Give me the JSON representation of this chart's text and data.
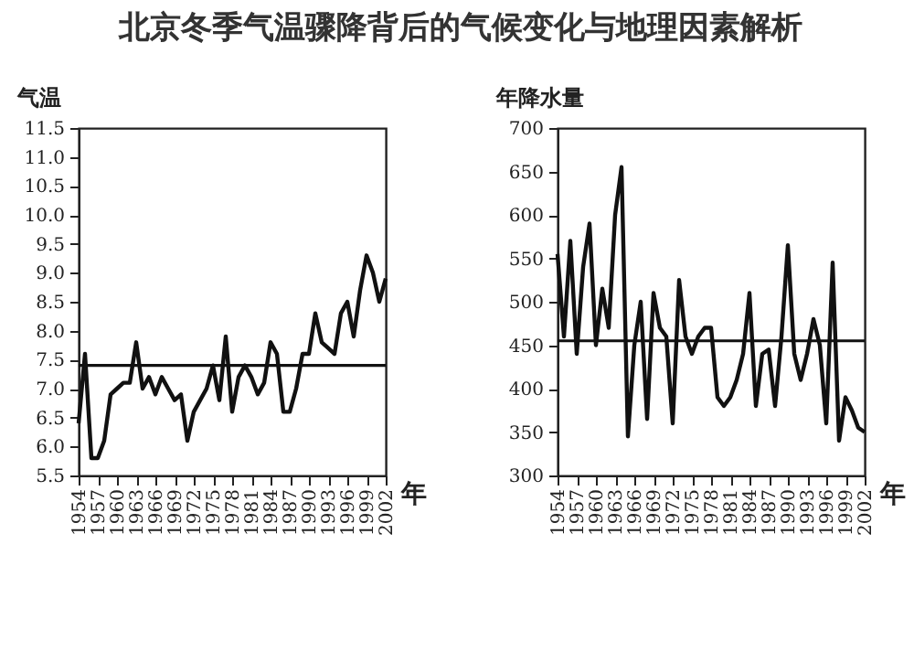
{
  "chart_data": [
    {
      "type": "line",
      "title": "北京冬季气温骤降背后的气候变化与地理因素解析",
      "ylabel": "气温",
      "xlabel": "年",
      "x": [
        1954,
        1955,
        1956,
        1957,
        1958,
        1959,
        1960,
        1961,
        1962,
        1963,
        1964,
        1965,
        1966,
        1967,
        1968,
        1969,
        1970,
        1971,
        1972,
        1973,
        1974,
        1975,
        1976,
        1977,
        1978,
        1979,
        1980,
        1981,
        1982,
        1983,
        1984,
        1985,
        1986,
        1987,
        1988,
        1989,
        1990,
        1991,
        1992,
        1993,
        1994,
        1995,
        1996,
        1997,
        1998,
        1999,
        2000,
        2001,
        2002
      ],
      "series": [
        {
          "color": "#111111",
          "values": [
            6.4,
            7.6,
            5.8,
            5.8,
            6.1,
            6.9,
            7.0,
            7.1,
            7.1,
            7.8,
            7.0,
            7.2,
            6.9,
            7.2,
            7.0,
            6.8,
            6.9,
            6.1,
            6.6,
            6.8,
            7.0,
            7.4,
            6.8,
            7.9,
            6.6,
            7.2,
            7.4,
            7.2,
            6.9,
            7.1,
            7.8,
            7.6,
            6.6,
            6.6,
            7.0,
            7.6,
            7.6,
            8.3,
            7.8,
            7.7,
            7.6,
            8.3,
            8.5,
            7.9,
            8.7,
            9.3,
            9.0,
            8.5,
            8.9
          ]
        }
      ],
      "xlim": [
        1954,
        2002
      ],
      "xticks": [
        1954,
        1957,
        1960,
        1963,
        1966,
        1969,
        1972,
        1975,
        1978,
        1981,
        1984,
        1987,
        1990,
        1993,
        1996,
        1999,
        2002
      ],
      "ylim": [
        5.5,
        11.5
      ],
      "yticks": [
        5.5,
        {
          "value": 6,
          "label": "6.0"
        },
        6.5,
        {
          "value": 7,
          "label": "7.0"
        },
        7.5,
        {
          "value": 8,
          "label": "8.0"
        },
        8.5,
        {
          "value": 9,
          "label": "9.0"
        },
        9.5,
        {
          "value": 10,
          "label": "10.0"
        },
        10.5,
        {
          "value": 11,
          "label": "11.0"
        },
        11.5
      ],
      "ref_lines": [
        {
          "axis": "y",
          "value": 7.4,
          "color": "#111111"
        }
      ],
      "grid": false,
      "marker": "none",
      "line_style": "solid"
    },
    {
      "type": "line",
      "ylabel": "年降水量",
      "xlabel": "年",
      "x": [
        1954,
        1955,
        1956,
        1957,
        1958,
        1959,
        1960,
        1961,
        1962,
        1963,
        1964,
        1965,
        1966,
        1967,
        1968,
        1969,
        1970,
        1971,
        1972,
        1973,
        1974,
        1975,
        1976,
        1977,
        1978,
        1979,
        1980,
        1981,
        1982,
        1983,
        1984,
        1985,
        1986,
        1987,
        1988,
        1989,
        1990,
        1991,
        1992,
        1993,
        1994,
        1995,
        1996,
        1997,
        1998,
        1999,
        2000,
        2001,
        2002
      ],
      "series": [
        {
          "color": "#111111",
          "values": [
            555,
            460,
            570,
            440,
            540,
            590,
            450,
            515,
            470,
            600,
            655,
            345,
            450,
            500,
            365,
            510,
            470,
            460,
            360,
            525,
            460,
            440,
            460,
            470,
            470,
            390,
            380,
            390,
            410,
            440,
            510,
            380,
            440,
            445,
            380,
            460,
            565,
            440,
            410,
            440,
            480,
            450,
            360,
            545,
            340,
            390,
            375,
            355,
            350
          ]
        }
      ],
      "xlim": [
        1954,
        2002
      ],
      "xticks": [
        1954,
        1957,
        1960,
        1963,
        1966,
        1969,
        1972,
        1975,
        1978,
        1981,
        1984,
        1987,
        1990,
        1993,
        1996,
        1999,
        2002
      ],
      "ylim": [
        300,
        700
      ],
      "yticks": [
        300,
        350,
        400,
        450,
        500,
        550,
        600,
        650,
        700
      ],
      "ref_lines": [
        {
          "axis": "y",
          "value": 455,
          "color": "#111111"
        }
      ],
      "grid": false,
      "marker": "none",
      "line_style": "solid"
    }
  ]
}
